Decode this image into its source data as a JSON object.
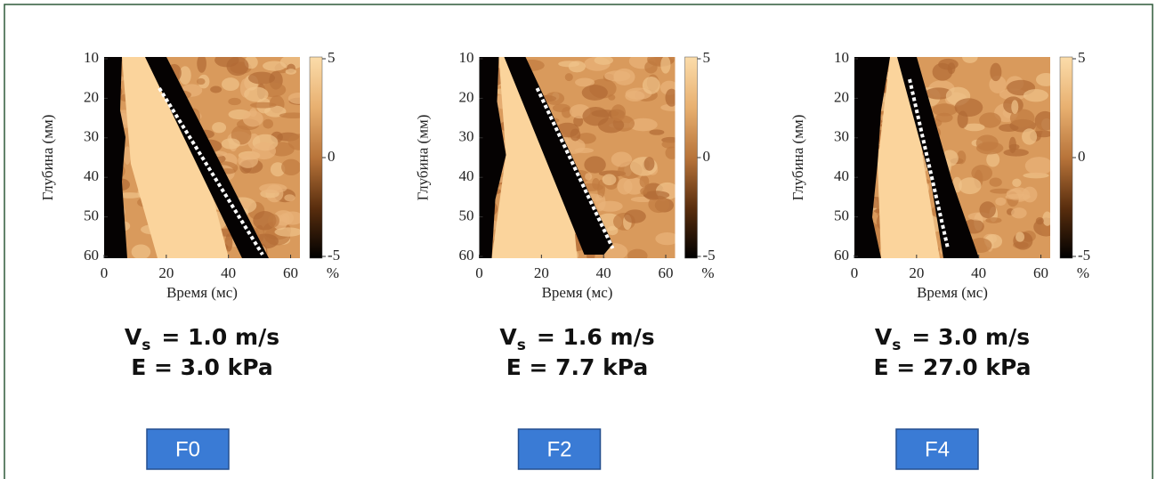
{
  "panels": [
    {
      "ylabel": "Глубина (мм)",
      "xlabel": "Время (мс)",
      "xlim": [
        0,
        63
      ],
      "xticks": [
        0,
        20,
        40,
        60
      ],
      "ylim": [
        10,
        60
      ],
      "yticks": [
        10,
        20,
        30,
        40,
        50,
        60
      ],
      "colorbar": {
        "lim": [
          -5,
          5
        ],
        "ticks": [
          5,
          0,
          -5
        ],
        "unit": "%"
      },
      "vs": {
        "symbol": "V",
        "subscript": "s",
        "value": "= 1.0 m/s"
      },
      "e": "E = 3.0 kPa",
      "grade": "F0"
    },
    {
      "ylabel": "Глубина (мм)",
      "xlabel": "Время (мс)",
      "xlim": [
        0,
        63
      ],
      "xticks": [
        0,
        20,
        40,
        60
      ],
      "ylim": [
        10,
        60
      ],
      "yticks": [
        10,
        20,
        30,
        40,
        50,
        60
      ],
      "colorbar": {
        "lim": [
          -5,
          5
        ],
        "ticks": [
          5,
          0,
          -5
        ],
        "unit": "%"
      },
      "vs": {
        "symbol": "V",
        "subscript": "s",
        "value": "= 1.6 m/s"
      },
      "e": "E = 7.7 kPa",
      "grade": "F2"
    },
    {
      "ylabel": "Глубина (мм)",
      "xlabel": "Время (мс)",
      "xlim": [
        0,
        63
      ],
      "xticks": [
        0,
        20,
        40,
        60
      ],
      "ylim": [
        10,
        60
      ],
      "yticks": [
        10,
        20,
        30,
        40,
        50,
        60
      ],
      "colorbar": {
        "lim": [
          -5,
          5
        ],
        "ticks": [
          5,
          0,
          -5
        ],
        "unit": "%"
      },
      "vs": {
        "symbol": "V",
        "subscript": "s",
        "value": "= 3.0 m/s"
      },
      "e": "E = 27.0 kPa",
      "grade": "F4"
    }
  ]
}
